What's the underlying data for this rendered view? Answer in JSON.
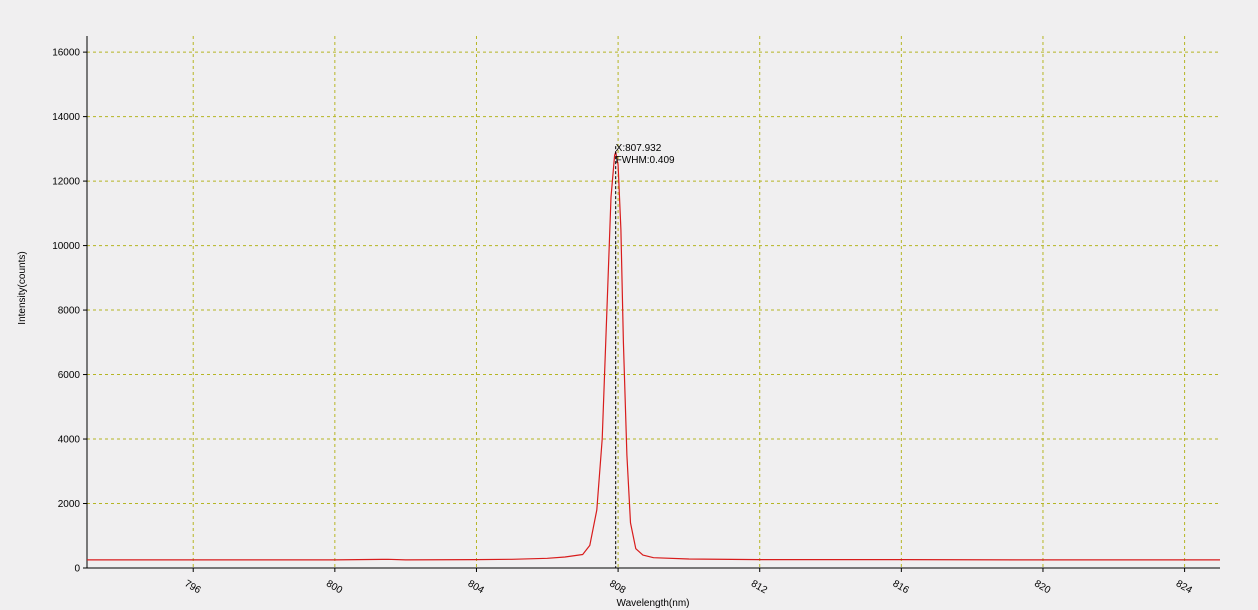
{
  "chart_data": {
    "type": "line",
    "title": "",
    "xlabel": "Wavelength(nm)",
    "ylabel": "Intensity(counts)",
    "xlim": [
      793,
      825
    ],
    "ylim": [
      0,
      16500
    ],
    "x_ticks": [
      796,
      800,
      804,
      808,
      812,
      816,
      820,
      824
    ],
    "y_ticks": [
      0,
      2000,
      4000,
      6000,
      8000,
      10000,
      12000,
      14000,
      16000
    ],
    "grid": true,
    "legend": "none",
    "series": [
      {
        "color": "#d81c1c",
        "x": [
          793.0,
          796.0,
          800.0,
          801.5,
          802.0,
          804.0,
          805.0,
          806.0,
          806.5,
          807.0,
          807.2,
          807.4,
          807.55,
          807.7,
          807.8,
          807.9,
          807.932,
          808.0,
          808.08,
          808.15,
          808.25,
          808.35,
          808.5,
          808.7,
          809.0,
          810.0,
          812.0,
          816.0,
          820.0,
          825.0
        ],
        "y": [
          250,
          250,
          250,
          270,
          250,
          260,
          270,
          300,
          340,
          420,
          700,
          1800,
          4000,
          8500,
          11500,
          12800,
          12900,
          12500,
          10500,
          7000,
          3500,
          1400,
          600,
          400,
          320,
          280,
          260,
          260,
          250,
          250
        ]
      }
    ],
    "annotation": {
      "x": 807.932,
      "line1": "X:807.932",
      "line2": "FWHM:0.409"
    },
    "colors": {
      "grid": "#b5b523",
      "axis": "#000000",
      "marker_line": "#000000"
    }
  }
}
